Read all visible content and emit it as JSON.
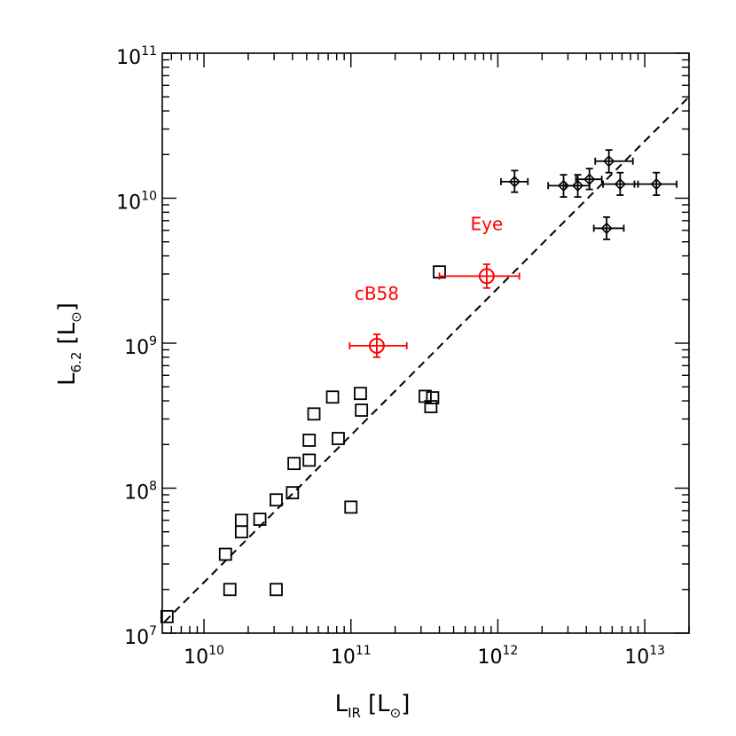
{
  "chart_data": {
    "type": "scatter",
    "title": "",
    "x_scale": "log",
    "y_scale": "log",
    "xlim": [
      5200000000.0,
      20000000000000.0
    ],
    "ylim": [
      10000000.0,
      100000000000.0
    ],
    "xlabel": {
      "main": "L",
      "sub": "IR",
      "unit": "[L",
      "sun": "⊙",
      "close": "]"
    },
    "ylabel": {
      "main": "L",
      "sub": "6.2",
      "unit": "[L",
      "sun": "⊙",
      "close": "]"
    },
    "x_ticks": [
      {
        "value": 10000000000.0,
        "base": "10",
        "exp": "10"
      },
      {
        "value": 100000000000.0,
        "base": "10",
        "exp": "11"
      },
      {
        "value": 1000000000000.0,
        "base": "10",
        "exp": "12"
      },
      {
        "value": 10000000000000.0,
        "base": "10",
        "exp": "13"
      }
    ],
    "y_ticks": [
      {
        "value": 10000000.0,
        "base": "10",
        "exp": "7"
      },
      {
        "value": 100000000.0,
        "base": "10",
        "exp": "8"
      },
      {
        "value": 1000000000.0,
        "base": "10",
        "exp": "9"
      },
      {
        "value": 10000000000.0,
        "base": "10",
        "exp": "10"
      },
      {
        "value": 100000000000.0,
        "base": "10",
        "exp": "11"
      }
    ],
    "series": [
      {
        "marker": "square",
        "color": "#000000",
        "points": [
          [
            5600000000.0,
            13000000.0
          ],
          [
            14000000000.0,
            35000000.0
          ],
          [
            15000000000.0,
            20000000.0
          ],
          [
            18000000000.0,
            60000000.0
          ],
          [
            18000000000.0,
            50000000.0
          ],
          [
            24000000000.0,
            61000000.0
          ],
          [
            31000000000.0,
            83000000.0
          ],
          [
            31000000000.0,
            20000000.0
          ],
          [
            40000000000.0,
            93000000.0
          ],
          [
            41000000000.0,
            148000000.0
          ],
          [
            52000000000.0,
            156000000.0
          ],
          [
            52000000000.0,
            214000000.0
          ],
          [
            56000000000.0,
            325000000.0
          ],
          [
            75000000000.0,
            425000000.0
          ],
          [
            82000000000.0,
            220000000.0
          ],
          [
            100000000000.0,
            74000000.0
          ],
          [
            116000000000.0,
            450000000.0
          ],
          [
            118000000000.0,
            345000000.0
          ],
          [
            320000000000.0,
            430000000.0
          ],
          [
            350000000000.0,
            365000000.0
          ],
          [
            360000000000.0,
            420000000.0
          ],
          [
            400000000000.0,
            3100000000.0
          ]
        ]
      },
      {
        "marker": "diamond-errorbar",
        "color": "#000000",
        "points": [
          {
            "x": 1300000000000.0,
            "y": 13000000000.0,
            "xerr": [
              1050000000000.0,
              1600000000000.0
            ],
            "yerr": [
              11000000000.0,
              15500000000.0
            ]
          },
          {
            "x": 2800000000000.0,
            "y": 12200000000.0,
            "xerr": [
              2200000000000.0,
              3500000000000.0
            ],
            "yerr": [
              10200000000.0,
              14500000000.0
            ]
          },
          {
            "x": 3500000000000.0,
            "y": 12200000000.0,
            "xerr": [
              2900000000000.0,
              4200000000000.0
            ],
            "yerr": [
              10200000000.0,
              14500000000.0
            ]
          },
          {
            "x": 4200000000000.0,
            "y": 13500000000.0,
            "xerr": [
              3400000000000.0,
              5100000000000.0
            ],
            "yerr": [
              11500000000.0,
              16000000000.0
            ]
          },
          {
            "x": 5700000000000.0,
            "y": 18000000000.0,
            "xerr": [
              4600000000000.0,
              8300000000000.0
            ],
            "yerr": [
              15000000000.0,
              21500000000.0
            ]
          },
          {
            "x": 6800000000000.0,
            "y": 12500000000.0,
            "xerr": [
              5200000000000.0,
              9000000000000.0
            ],
            "yerr": [
              10500000000.0,
              15000000000.0
            ]
          },
          {
            "x": 5500000000000.0,
            "y": 6200000000.0,
            "xerr": [
              4500000000000.0,
              7200000000000.0
            ],
            "yerr": [
              5200000000.0,
              7400000000.0
            ]
          },
          {
            "x": 12000000000000.0,
            "y": 12500000000.0,
            "xerr": [
              8500000000000.0,
              16500000000000.0
            ],
            "yerr": [
              10500000000.0,
              15000000000.0
            ]
          }
        ]
      },
      {
        "marker": "circle-errorbar",
        "color": "#ff0000",
        "points": [
          {
            "x": 150000000000.0,
            "y": 960000000.0,
            "xerr": [
              98000000000.0,
              240000000000.0
            ],
            "yerr": [
              800000000.0,
              1150000000.0
            ],
            "label": "cB58"
          },
          {
            "x": 840000000000.0,
            "y": 2900000000.0,
            "xerr": [
              400000000000.0,
              1400000000000.0
            ],
            "yerr": [
              2400000000.0,
              3500000000.0
            ],
            "label": "Eye"
          }
        ]
      }
    ],
    "fit_line": {
      "style": "dashed",
      "color": "#000000",
      "x": [
        5400000000.0,
        20000000000000.0
      ],
      "y": [
        12000000.0,
        50000000000.0
      ]
    }
  }
}
